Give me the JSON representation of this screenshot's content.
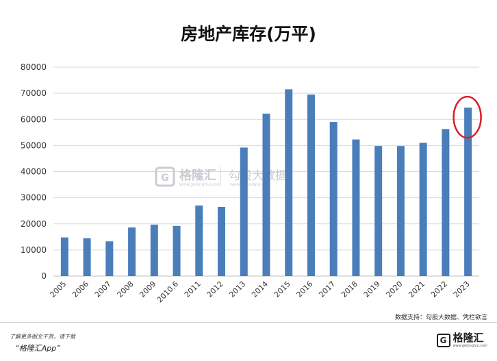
{
  "chart_data": {
    "type": "bar",
    "title": "房地产库存(万平)",
    "categories": [
      "2005",
      "2006",
      "2007",
      "2008",
      "2009",
      "2010.6",
      "2011",
      "2012",
      "2013",
      "2014",
      "2015",
      "2016",
      "2017",
      "2018",
      "2019",
      "2020",
      "2021",
      "2022",
      "2023"
    ],
    "values": [
      14800,
      14500,
      13300,
      18600,
      19700,
      19200,
      27000,
      26500,
      49200,
      62200,
      71500,
      69500,
      59000,
      52300,
      49800,
      49800,
      51000,
      56300,
      64500
    ],
    "ylim": [
      0,
      80000
    ],
    "yticks": [
      "0",
      "10000",
      "20000",
      "30000",
      "40000",
      "50000",
      "60000",
      "70000",
      "80000"
    ],
    "grid": true,
    "bar_color": "#4a7ebb",
    "highlight_color": "#d9202a",
    "highlight_category": "2023"
  },
  "watermark": {
    "brand": "格隆汇",
    "brand_url": "www.gelonghui.com",
    "gogu": "勾股大数据",
    "gogu_url": "www.gogudata.com"
  },
  "source_text": "数据支持：勾股大数据、凭栏欲言",
  "footer": {
    "promo_line1": "了解更多图文干货，请下载",
    "promo_line2": "“格隆汇App”",
    "brand_name": "格隆汇",
    "brand_url": "www.gelonghui.com",
    "brand_mark": "G"
  }
}
